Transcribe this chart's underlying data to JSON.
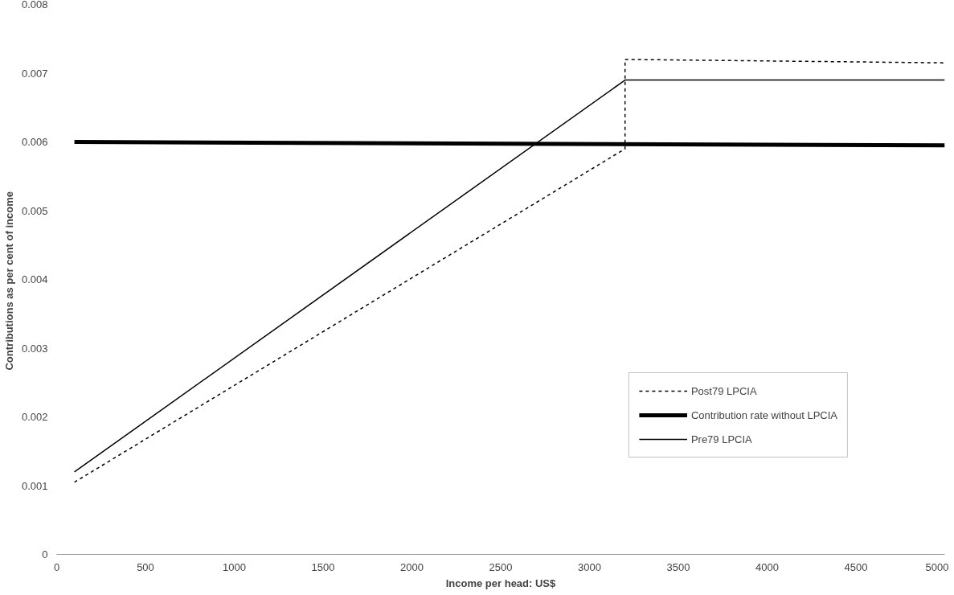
{
  "chart_data": {
    "type": "line",
    "xlabel": "Income per head: US$",
    "ylabel": "Contributions as  per cent of income",
    "xlim": [
      0,
      5000
    ],
    "xticks": [
      0,
      500,
      1000,
      1500,
      2000,
      2500,
      3000,
      3500,
      4000,
      4500,
      5000
    ],
    "ylim": [
      0,
      0.008
    ],
    "yticks": [
      0,
      0.001,
      0.002,
      0.003,
      0.004,
      0.005,
      0.006,
      0.007,
      0.008
    ],
    "grid": false,
    "legend": "bottom right",
    "marker": "none",
    "series": [
      {
        "name": "Post79 LPCIA",
        "color": "#000000",
        "line_style": "dotted",
        "x": [
          100,
          3200,
          3200,
          5000
        ],
        "values": [
          0.00105,
          0.0059,
          0.0072,
          0.00715
        ]
      },
      {
        "name": "Contribution rate without LPCIA",
        "color": "#000000",
        "line_style": "solid",
        "x": [
          100,
          5000
        ],
        "values": [
          0.006,
          0.00595
        ]
      },
      {
        "name": "Pre79 LPCIA",
        "color": "#000000",
        "line_style": "solid",
        "x": [
          100,
          3200,
          5000
        ],
        "values": [
          0.0012,
          0.0069,
          0.0069
        ]
      }
    ]
  }
}
